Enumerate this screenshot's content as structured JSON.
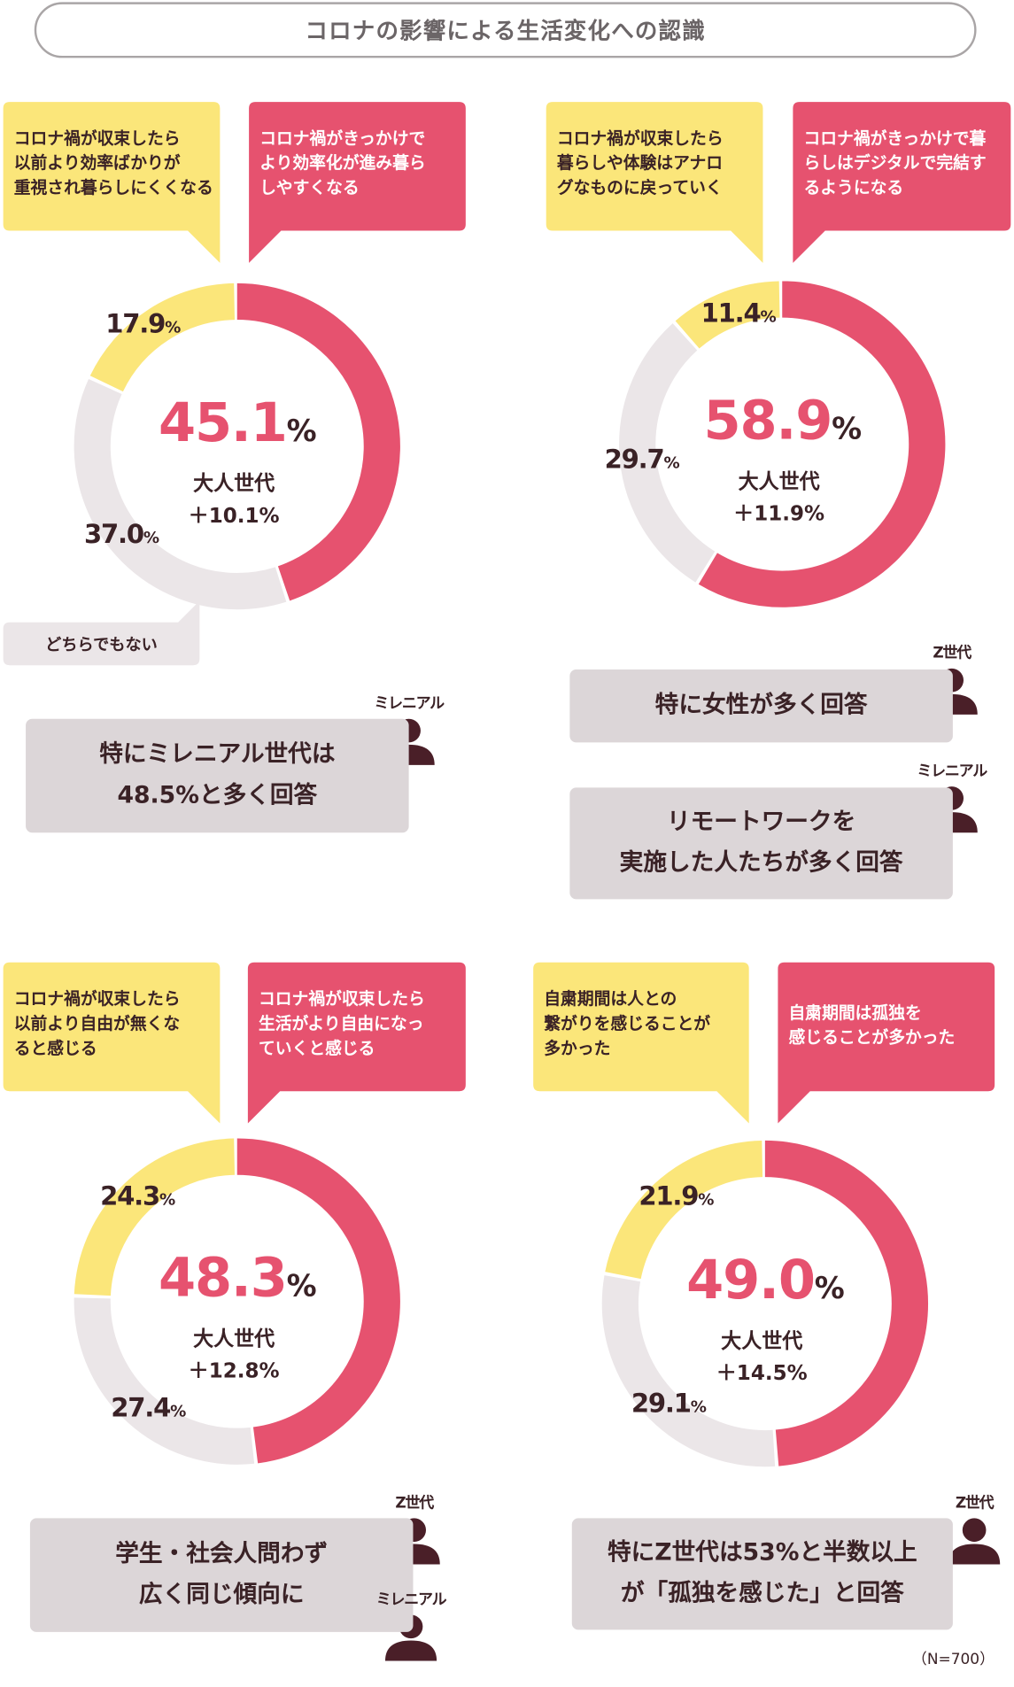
{
  "title": "コロナの影響による生活変化への認識",
  "colors": {
    "positive": "#e6526f",
    "negative": "#fbe67a",
    "neither": "#ebe6e8",
    "callout_bg": "#dcd6d8",
    "text": "#3a2226",
    "icon": "#4a1f28"
  },
  "neither_label": "どちらでもない",
  "sample_note": "（N=700）",
  "adult_label": "大人世代",
  "icon_labels": {
    "millennial": "ミレニアル",
    "genz": "Z世代"
  },
  "panels": [
    {
      "negative_text": "コロナ禍が収束したら\n以前より効率ばかりが\n重視され暮らしにくくなる",
      "positive_text": "コロナ禍がきっかけで\nより効率化が進み暮ら\nしやすくなる",
      "positive": "45.1",
      "neither": "37.0",
      "negative": "17.9",
      "pct_sign": "%",
      "adult_diff": "＋10.1%",
      "callouts": [
        {
          "text": "特にミレニアル世代は\n48.5%と多く回答",
          "icons": [
            "millennial"
          ]
        }
      ]
    },
    {
      "negative_text": "コロナ禍が収束したら\n暮らしや体験はアナロ\nグなものに戻っていく",
      "positive_text": "コロナ禍がきっかけで暮\nらしはデジタルで完結す\nるようになる",
      "positive": "58.9",
      "neither": "29.7",
      "negative": "11.4",
      "pct_sign": "%",
      "adult_diff": "＋11.9%",
      "callouts": [
        {
          "text": "特に女性が多く回答",
          "icons": [
            "genz"
          ]
        },
        {
          "text": "リモートワークを\n実施した人たちが多く回答",
          "icons": [
            "millennial"
          ]
        }
      ]
    },
    {
      "negative_text": "コロナ禍が収束したら\n以前より自由が無くな\nると感じる",
      "positive_text": "コロナ禍が収束したら\n生活がより自由になっ\nていくと感じる",
      "positive": "48.3",
      "neither": "27.4",
      "negative": "24.3",
      "pct_sign": "%",
      "adult_diff": "＋12.8%",
      "callouts": [
        {
          "text": "学生・社会人問わず\n広く同じ傾向に",
          "icons": [
            "genz",
            "millennial"
          ]
        }
      ]
    },
    {
      "negative_text": "自粛期間は人との\n繋がりを感じることが\n多かった",
      "positive_text": "自粛期間は孤独を\n感じることが多かった",
      "positive": "49.0",
      "neither": "29.1",
      "negative": "21.9",
      "pct_sign": "%",
      "adult_diff": "＋14.5%",
      "callouts": [
        {
          "text": "特にZ世代は53%と半数以上\nが「孤独を感じた」と回答",
          "icons": [
            "genz"
          ]
        }
      ]
    }
  ],
  "chart_data": [
    {
      "type": "pie",
      "donut": true,
      "categories": [
        "positive",
        "neither",
        "negative"
      ],
      "values": [
        45.1,
        37.0,
        17.9
      ],
      "unit": "%"
    },
    {
      "type": "pie",
      "donut": true,
      "categories": [
        "positive",
        "neither",
        "negative"
      ],
      "values": [
        58.9,
        29.7,
        11.4
      ],
      "unit": "%"
    },
    {
      "type": "pie",
      "donut": true,
      "categories": [
        "positive",
        "neither",
        "negative"
      ],
      "values": [
        48.3,
        27.4,
        24.3
      ],
      "unit": "%"
    },
    {
      "type": "pie",
      "donut": true,
      "categories": [
        "positive",
        "neither",
        "negative"
      ],
      "values": [
        49.0,
        29.1,
        21.9
      ],
      "unit": "%"
    }
  ]
}
